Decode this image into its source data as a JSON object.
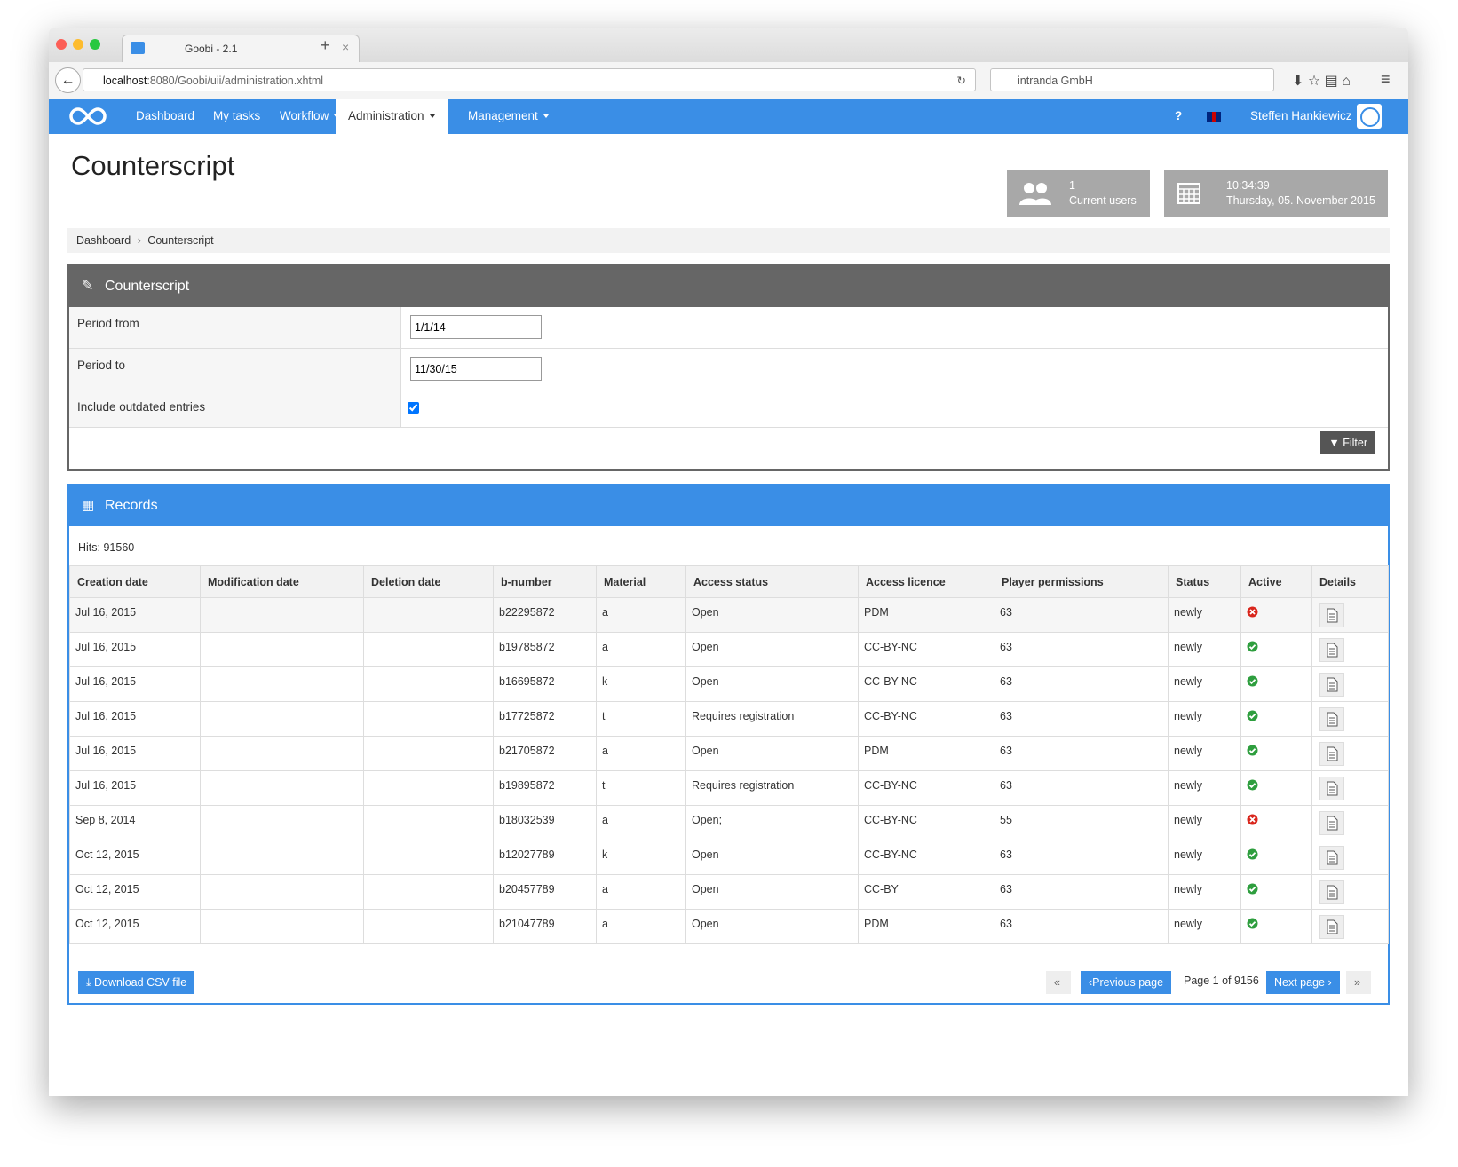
{
  "browser": {
    "tab_title": "Goobi - 2.1",
    "url_host": "localhost",
    "url_path": ":8080/Goobi/uii/administration.xhtml",
    "search": "intranda GmbH"
  },
  "nav": {
    "items": [
      {
        "label": "Dashboard",
        "dropdown": false,
        "active": false
      },
      {
        "label": "My tasks",
        "dropdown": false,
        "active": false
      },
      {
        "label": "Workflow",
        "dropdown": true,
        "active": false
      },
      {
        "label": "Administration",
        "dropdown": true,
        "active": true
      },
      {
        "label": "Management",
        "dropdown": true,
        "active": false
      }
    ],
    "help": "?",
    "user": "Steffen Hankiewicz"
  },
  "header": {
    "title": "Counterscript",
    "users": {
      "count": "1",
      "label": "Current users"
    },
    "clock": {
      "time": "10:34:39",
      "date": "Thursday, 05. November 2015"
    }
  },
  "breadcrumb": [
    "Dashboard",
    "Counterscript"
  ],
  "form": {
    "title": "Counterscript",
    "period_from": {
      "label": "Period from",
      "value": "1/1/14"
    },
    "period_to": {
      "label": "Period to",
      "value": "11/30/15"
    },
    "outdated": {
      "label": "Include outdated entries",
      "checked": true
    },
    "filter": "Filter"
  },
  "records": {
    "title": "Records",
    "hits": "Hits: 91560",
    "columns": [
      "Creation date",
      "Modification date",
      "Deletion date",
      "b-number",
      "Material",
      "Access status",
      "Access licence",
      "Player permissions",
      "Status",
      "Active",
      "Details"
    ],
    "rows": [
      {
        "created": "Jul 16, 2015",
        "bnumber": "b22295872",
        "material": "a",
        "access": "Open",
        "licence": "PDM",
        "permissions": "63",
        "status": "newly",
        "active": false
      },
      {
        "created": "Jul 16, 2015",
        "bnumber": "b19785872",
        "material": "a",
        "access": "Open",
        "licence": "CC-BY-NC",
        "permissions": "63",
        "status": "newly",
        "active": true
      },
      {
        "created": "Jul 16, 2015",
        "bnumber": "b16695872",
        "material": "k",
        "access": "Open",
        "licence": "CC-BY-NC",
        "permissions": "63",
        "status": "newly",
        "active": true
      },
      {
        "created": "Jul 16, 2015",
        "bnumber": "b17725872",
        "material": "t",
        "access": "Requires registration",
        "licence": "CC-BY-NC",
        "permissions": "63",
        "status": "newly",
        "active": true
      },
      {
        "created": "Jul 16, 2015",
        "bnumber": "b21705872",
        "material": "a",
        "access": "Open",
        "licence": "PDM",
        "permissions": "63",
        "status": "newly",
        "active": true
      },
      {
        "created": "Jul 16, 2015",
        "bnumber": "b19895872",
        "material": "t",
        "access": "Requires registration",
        "licence": "CC-BY-NC",
        "permissions": "63",
        "status": "newly",
        "active": true
      },
      {
        "created": "Sep 8, 2014",
        "bnumber": "b18032539",
        "material": "a",
        "access": "Open;",
        "licence": "CC-BY-NC",
        "permissions": "55",
        "status": "newly",
        "active": false
      },
      {
        "created": "Oct 12, 2015",
        "bnumber": "b12027789",
        "material": "k",
        "access": "Open",
        "licence": "CC-BY-NC",
        "permissions": "63",
        "status": "newly",
        "active": true
      },
      {
        "created": "Oct 12, 2015",
        "bnumber": "b20457789",
        "material": "a",
        "access": "Open",
        "licence": "CC-BY",
        "permissions": "63",
        "status": "newly",
        "active": true
      },
      {
        "created": "Oct 12, 2015",
        "bnumber": "b21047789",
        "material": "a",
        "access": "Open",
        "licence": "PDM",
        "permissions": "63",
        "status": "newly",
        "active": true
      }
    ],
    "download": "Download CSV file",
    "pager": {
      "previous": "Previous page",
      "page": "Page 1 of 9156",
      "next": "Next page"
    }
  }
}
